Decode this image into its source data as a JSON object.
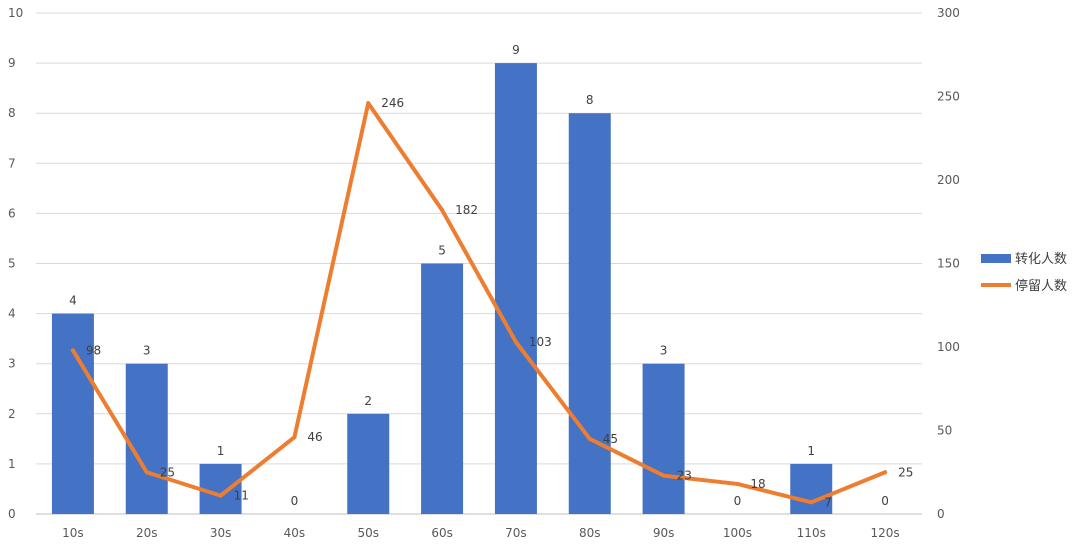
{
  "chart_data": {
    "type": "bar+line",
    "categories": [
      "10s",
      "20s",
      "30s",
      "40s",
      "50s",
      "60s",
      "70s",
      "80s",
      "90s",
      "100s",
      "110s",
      "120s"
    ],
    "series": [
      {
        "name": "转化人数",
        "type": "bar",
        "axis": "left",
        "color": "#4472C4",
        "values": [
          4,
          3,
          1,
          0,
          2,
          5,
          9,
          8,
          3,
          0,
          1,
          0
        ]
      },
      {
        "name": "停留人数",
        "type": "line",
        "axis": "right",
        "color": "#ED7D31",
        "values": [
          98,
          25,
          11,
          46,
          246,
          182,
          103,
          45,
          23,
          18,
          7,
          25
        ]
      }
    ],
    "y_left": {
      "min": 0,
      "max": 10,
      "ticks": [
        "0",
        "1",
        "2",
        "3",
        "4",
        "5",
        "6",
        "7",
        "8",
        "9",
        "10"
      ]
    },
    "y_right": {
      "min": 0,
      "max": 300,
      "ticks": [
        "0",
        "50",
        "100",
        "150",
        "200",
        "250",
        "300"
      ]
    },
    "grid": true,
    "legend_position": "right"
  }
}
